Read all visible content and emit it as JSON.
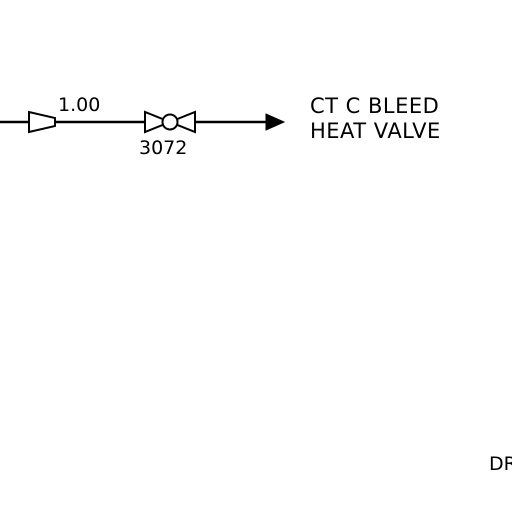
{
  "diagram": {
    "pipe_size_label": "1.00",
    "valve_tag": "3072",
    "destination": {
      "line1": "CT C BLEED",
      "line2": "HEAT VALVE"
    },
    "edge_text": "DR"
  },
  "colors": {
    "ink": "#000000",
    "background": "#ffffff"
  },
  "icons": {
    "reducer": "pipe-reducer-icon",
    "valve": "ball-valve-icon",
    "arrow": "flow-arrow-icon"
  }
}
